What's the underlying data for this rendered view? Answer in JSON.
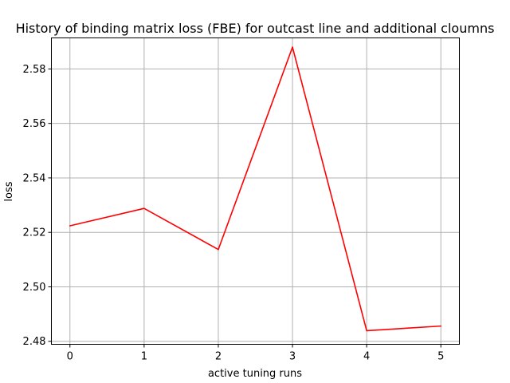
{
  "chart_data": {
    "type": "line",
    "title": "History of binding matrix loss (FBE) for outcast line and additional cloumns",
    "xlabel": "active tuning runs",
    "ylabel": "loss",
    "x": [
      0,
      1,
      2,
      3,
      4,
      5
    ],
    "xticks": [
      "0",
      "1",
      "2",
      "3",
      "4",
      "5"
    ],
    "yticks": [
      "2.48",
      "2.50",
      "2.52",
      "2.54",
      "2.56",
      "2.58"
    ],
    "xlim": [
      -0.25,
      5.25
    ],
    "ylim": [
      2.4789,
      2.5914
    ],
    "grid": true,
    "series": [
      {
        "color": "#ff0000",
        "values": [
          2.5224,
          2.5288,
          2.5137,
          2.588,
          2.4839,
          2.4856
        ]
      }
    ]
  }
}
